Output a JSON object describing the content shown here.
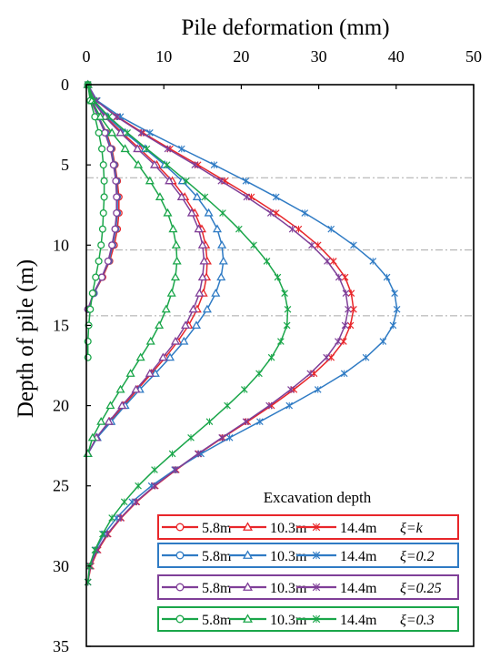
{
  "chart_data": {
    "type": "line",
    "title": "Pile deformation (mm)",
    "xlabel": "Pile deformation (mm)",
    "ylabel": "Depth of pile (m)",
    "xlim": [
      0,
      50
    ],
    "ylim": [
      35,
      0
    ],
    "x_ticks": [
      "0",
      "10",
      "20",
      "30",
      "40",
      "50"
    ],
    "y_ticks": [
      "0",
      "5",
      "10",
      "15",
      "20",
      "25",
      "30",
      "35"
    ],
    "x_axis_position": "top",
    "grid": false,
    "excavation_levels_m": [
      5.8,
      10.3,
      14.4
    ],
    "legend": {
      "title": "Excavation depth",
      "placement": "bottom-right",
      "groups": [
        {
          "label": "ξ=k",
          "color": "#e8262a",
          "entries": [
            "5.8m",
            "10.3m",
            "14.4m"
          ]
        },
        {
          "label": "ξ=0.2",
          "color": "#2f7bc4",
          "entries": [
            "5.8m",
            "10.3m",
            "14.4m"
          ]
        },
        {
          "label": "ξ=0.25",
          "color": "#7f3f98",
          "entries": [
            "5.8m",
            "10.3m",
            "14.4m"
          ]
        },
        {
          "label": "ξ=0.3",
          "color": "#1aa64a",
          "entries": [
            "5.8m",
            "10.3m",
            "14.4m"
          ]
        }
      ]
    },
    "series": [
      {
        "group": "ξ=k",
        "stage": "5.8m",
        "marker": "circle",
        "color": "#e8262a",
        "depth": [
          0,
          1,
          2,
          3,
          4,
          5,
          6,
          7,
          8,
          9,
          10,
          11,
          12,
          13,
          14
        ],
        "deformation": [
          0.2,
          0.6,
          1.6,
          2.6,
          3.3,
          3.7,
          4.0,
          4.2,
          4.2,
          4.0,
          3.6,
          3.0,
          2.1,
          1.0,
          0.2
        ]
      },
      {
        "group": "ξ=k",
        "stage": "10.3m",
        "marker": "triangle",
        "color": "#e8262a",
        "depth": [
          0,
          1,
          2,
          3,
          4,
          5,
          6,
          7,
          8,
          9,
          10,
          11,
          12,
          13,
          14,
          15,
          16,
          17,
          18,
          19,
          20,
          21,
          22,
          23
        ],
        "deformation": [
          0.2,
          0.8,
          2.5,
          4.6,
          6.9,
          9.1,
          11.1,
          12.7,
          14.0,
          14.9,
          15.4,
          15.6,
          15.5,
          15.1,
          14.3,
          13.2,
          11.8,
          10.2,
          8.4,
          6.6,
          4.8,
          3.0,
          1.3,
          0.2
        ]
      },
      {
        "group": "ξ=k",
        "stage": "14.4m",
        "marker": "cross",
        "color": "#e8262a",
        "depth": [
          0,
          1,
          2,
          3,
          4,
          5,
          6,
          7,
          8,
          9,
          10,
          11,
          12,
          13,
          14,
          15,
          16,
          17,
          18,
          19,
          20,
          21,
          22,
          23,
          24,
          25,
          26,
          27,
          28,
          29,
          30,
          31
        ],
        "deformation": [
          0.2,
          1.3,
          4.0,
          7.3,
          10.8,
          14.4,
          17.9,
          21.3,
          24.5,
          27.4,
          29.9,
          31.9,
          33.4,
          34.2,
          34.5,
          34.1,
          33.2,
          31.6,
          29.4,
          26.8,
          23.9,
          20.8,
          17.6,
          14.5,
          11.6,
          8.9,
          6.5,
          4.5,
          2.8,
          1.5,
          0.6,
          0.2
        ]
      },
      {
        "group": "ξ=0.2",
        "stage": "5.8m",
        "marker": "circle",
        "color": "#2f7bc4",
        "depth": [
          0,
          1,
          2,
          3,
          4,
          5,
          6,
          7,
          8,
          9,
          10,
          11,
          12,
          13,
          14
        ],
        "deformation": [
          0.2,
          0.6,
          1.6,
          2.5,
          3.2,
          3.6,
          3.9,
          4.0,
          4.0,
          3.8,
          3.4,
          2.9,
          2.0,
          1.0,
          0.2
        ]
      },
      {
        "group": "ξ=0.2",
        "stage": "10.3m",
        "marker": "triangle",
        "color": "#2f7bc4",
        "depth": [
          0,
          1,
          2,
          3,
          4,
          5,
          6,
          7,
          8,
          9,
          10,
          11,
          12,
          13,
          14,
          15,
          16,
          17,
          18,
          19,
          20,
          21,
          22,
          23
        ],
        "deformation": [
          0.2,
          0.9,
          2.7,
          5.0,
          7.6,
          10.1,
          12.4,
          14.3,
          15.8,
          16.9,
          17.5,
          17.7,
          17.4,
          16.7,
          15.6,
          14.2,
          12.6,
          10.8,
          8.9,
          6.9,
          5.0,
          3.2,
          1.4,
          0.2
        ]
      },
      {
        "group": "ξ=0.2",
        "stage": "14.4m",
        "marker": "cross",
        "color": "#2f7bc4",
        "depth": [
          0,
          1,
          2,
          3,
          4,
          5,
          6,
          7,
          8,
          9,
          10,
          11,
          12,
          13,
          14,
          15,
          16,
          17,
          18,
          19,
          20,
          21,
          22,
          23,
          24,
          25,
          26,
          27,
          28,
          29,
          30,
          31
        ],
        "deformation": [
          0.2,
          1.4,
          4.4,
          8.2,
          12.3,
          16.5,
          20.6,
          24.5,
          28.2,
          31.6,
          34.5,
          37.0,
          38.8,
          39.8,
          40.1,
          39.6,
          38.3,
          36.1,
          33.3,
          29.9,
          26.2,
          22.4,
          18.5,
          14.8,
          11.4,
          8.4,
          5.9,
          3.9,
          2.3,
          1.2,
          0.5,
          0.2
        ]
      },
      {
        "group": "ξ=0.25",
        "stage": "5.8m",
        "marker": "circle",
        "color": "#7f3f98",
        "depth": [
          0,
          1,
          2,
          3,
          4,
          5,
          6,
          7,
          8,
          9,
          10,
          11,
          12,
          13,
          14
        ],
        "deformation": [
          0.2,
          0.6,
          1.5,
          2.4,
          3.1,
          3.5,
          3.8,
          3.9,
          3.9,
          3.7,
          3.3,
          2.8,
          2.0,
          0.9,
          0.2
        ]
      },
      {
        "group": "ξ=0.25",
        "stage": "10.3m",
        "marker": "triangle",
        "color": "#7f3f98",
        "depth": [
          0,
          1,
          2,
          3,
          4,
          5,
          6,
          7,
          8,
          9,
          10,
          11,
          12,
          13,
          14,
          15,
          16,
          17,
          18,
          19,
          20,
          21,
          22,
          23
        ],
        "deformation": [
          0.2,
          0.8,
          2.4,
          4.4,
          6.6,
          8.8,
          10.7,
          12.3,
          13.6,
          14.5,
          15.0,
          15.2,
          15.0,
          14.6,
          13.8,
          12.8,
          11.5,
          9.9,
          8.2,
          6.4,
          4.6,
          2.9,
          1.3,
          0.2
        ]
      },
      {
        "group": "ξ=0.25",
        "stage": "14.4m",
        "marker": "cross",
        "color": "#7f3f98",
        "depth": [
          0,
          1,
          2,
          3,
          4,
          5,
          6,
          7,
          8,
          9,
          10,
          11,
          12,
          13,
          14,
          15,
          16,
          17,
          18,
          19,
          20,
          21,
          22,
          23,
          24,
          25,
          26,
          27,
          28,
          29,
          30,
          31
        ],
        "deformation": [
          0.2,
          1.3,
          3.9,
          7.1,
          10.5,
          14.0,
          17.4,
          20.7,
          23.8,
          26.6,
          29.1,
          31.1,
          32.6,
          33.5,
          33.8,
          33.4,
          32.5,
          31.0,
          28.9,
          26.4,
          23.6,
          20.6,
          17.5,
          14.4,
          11.5,
          8.8,
          6.4,
          4.4,
          2.7,
          1.4,
          0.5,
          0.2
        ]
      },
      {
        "group": "ξ=0.3",
        "stage": "5.8m",
        "marker": "circle",
        "color": "#1aa64a",
        "depth": [
          0,
          1,
          2,
          3,
          4,
          5,
          6,
          7,
          8,
          9,
          10,
          11,
          12,
          13,
          14,
          15,
          16,
          17
        ],
        "deformation": [
          0.2,
          0.5,
          1.1,
          1.6,
          2.0,
          2.2,
          2.3,
          2.3,
          2.2,
          2.1,
          1.9,
          1.6,
          1.2,
          0.8,
          0.5,
          0.3,
          0.2,
          0.2
        ]
      },
      {
        "group": "ξ=0.3",
        "stage": "10.3m",
        "marker": "triangle",
        "color": "#1aa64a",
        "depth": [
          0,
          1,
          2,
          3,
          4,
          5,
          6,
          7,
          8,
          9,
          10,
          11,
          12,
          13,
          14,
          15,
          16,
          17,
          18,
          19,
          20,
          21,
          22,
          23
        ],
        "deformation": [
          0.2,
          0.7,
          1.8,
          3.3,
          5.0,
          6.7,
          8.2,
          9.5,
          10.5,
          11.2,
          11.6,
          11.7,
          11.5,
          11.0,
          10.3,
          9.4,
          8.3,
          7.0,
          5.7,
          4.4,
          3.1,
          1.9,
          0.8,
          0.2
        ]
      },
      {
        "group": "ξ=0.3",
        "stage": "14.4m",
        "marker": "cross",
        "color": "#1aa64a",
        "depth": [
          0,
          1,
          2,
          3,
          4,
          5,
          6,
          7,
          8,
          9,
          10,
          11,
          12,
          13,
          14,
          15,
          16,
          17,
          18,
          19,
          20,
          21,
          22,
          23,
          24,
          25,
          26,
          27,
          28,
          29,
          30,
          31
        ],
        "deformation": [
          0.2,
          1.0,
          2.9,
          5.3,
          7.8,
          10.4,
          12.9,
          15.3,
          17.6,
          19.7,
          21.6,
          23.3,
          24.7,
          25.6,
          26.0,
          25.9,
          25.1,
          23.9,
          22.3,
          20.4,
          18.2,
          15.9,
          13.5,
          11.1,
          8.8,
          6.7,
          4.9,
          3.3,
          2.1,
          1.1,
          0.4,
          0.2
        ]
      }
    ]
  }
}
